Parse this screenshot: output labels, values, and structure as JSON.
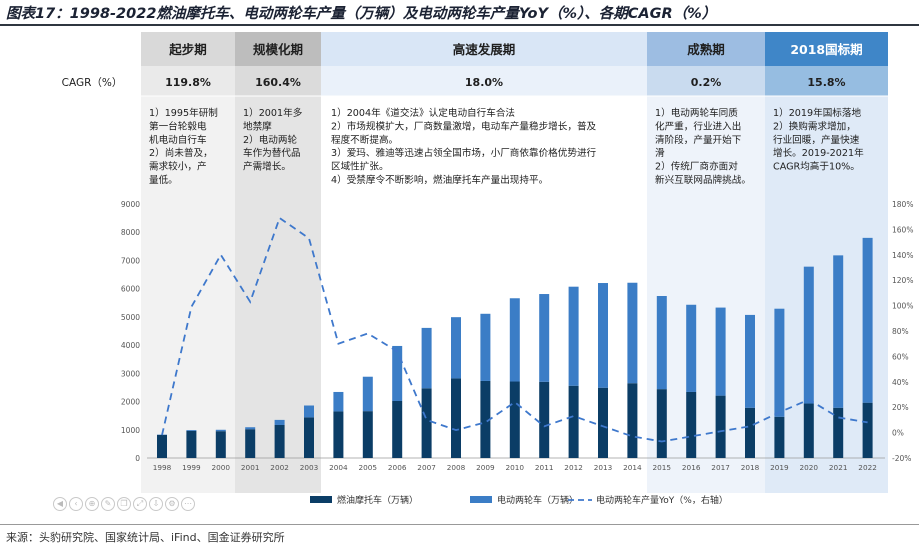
{
  "title": "图表17：1998-2022燃油摩托车、电动两轮车产量（万辆）及电动两轮车产量YoY（%）、各期CAGR（%）",
  "source": "来源：头豹研究院、国家统计局、iFind、国金证券研究所",
  "colors": {
    "fuel": "#0b3d66",
    "electric": "#3b7dc6",
    "yoy": "#3e78cc",
    "phase_header": [
      "#d9d9d9",
      "#bdbdbd",
      "#d9e6f6",
      "#9dbde2",
      "#3f86c8"
    ],
    "phase_body": [
      "#f2f2f2",
      "#e4e4e4",
      "#ffffff",
      "#eef3fa",
      "#dfeaf7"
    ]
  },
  "phases": [
    {
      "name": "起步期",
      "cagr": "119.8%",
      "notes": [
        "1）1995年研制",
        "第一台轮毂电",
        "机电动自行车",
        "2）尚未普及，",
        "需求较小，产",
        "量低。"
      ]
    },
    {
      "name": "规模化期",
      "cagr": "160.4%",
      "notes": [
        "1）2001年多",
        "地禁摩",
        "2）电动两轮",
        "车作为替代品",
        "产需增长。"
      ]
    },
    {
      "name": "高速发展期",
      "cagr": "18.0%",
      "notes": [
        "1）2004年《道交法》认定电动自行车合法",
        "2）市场规模扩大，厂商数量激增，电动车产量稳步增长，普及",
        "程度不断提高。",
        "3）爱玛、雅迪等迅速占领全国市场，小厂商依靠价格优势进行",
        "区域性扩张。",
        "4）受禁摩令不断影响，燃油摩托车产量出现持平。"
      ]
    },
    {
      "name": "成熟期",
      "cagr": "0.2%",
      "notes": [
        "1）电动两轮车同质",
        "化严重，行业进入出",
        "清阶段，产量开始下",
        "滑",
        "2）传统厂商亦面对",
        "新兴互联网品牌挑战。"
      ]
    },
    {
      "name": "2018国标期",
      "cagr": "15.8%",
      "notes": [
        "1）2019年国标落地",
        "2）换购需求增加，",
        "行业回暖，产量快速",
        "增长。2019-2021年",
        "CAGR均高于10%。"
      ]
    }
  ],
  "cagr_label": "CAGR（%）",
  "legend": {
    "fuel": "燃油摩托车（万辆）",
    "electric": "电动两轮车（万辆）",
    "yoy": "电动两轮车产量YoY（%，右轴）"
  },
  "chart_data": {
    "type": "bar",
    "stacked": true,
    "categories": [
      "1998",
      "1999",
      "2000",
      "2001",
      "2002",
      "2003",
      "2004",
      "2005",
      "2006",
      "2007",
      "2008",
      "2009",
      "2010",
      "2011",
      "2012",
      "2013",
      "2014",
      "2015",
      "2016",
      "2017",
      "2018",
      "2019",
      "2020",
      "2021",
      "2022"
    ],
    "series": [
      {
        "name": "燃油摩托车（万辆）",
        "axis": "left",
        "values": [
          820,
          960,
          950,
          1020,
          1170,
          1440,
          1650,
          1660,
          2020,
          2470,
          2820,
          2730,
          2710,
          2700,
          2560,
          2490,
          2650,
          2440,
          2340,
          2210,
          1780,
          1460,
          1930,
          1780,
          1960
        ]
      },
      {
        "name": "电动两轮车（万辆）",
        "axis": "left",
        "values": [
          10,
          30,
          50,
          70,
          180,
          420,
          690,
          1220,
          1950,
          2140,
          2170,
          2380,
          2950,
          3110,
          3510,
          3710,
          3560,
          3300,
          3090,
          3120,
          3290,
          3830,
          4850,
          5400,
          5840
        ]
      },
      {
        "name": "电动两轮车产量YoY（%，右轴）",
        "type": "line",
        "axis": "right",
        "values": [
          -2,
          99,
          140,
          103,
          169,
          153,
          70,
          78,
          64,
          10,
          2,
          8,
          24,
          5,
          13,
          5,
          -3,
          -7,
          -3,
          1,
          5,
          16,
          26,
          12,
          8
        ]
      }
    ],
    "yleft": {
      "min": 0,
      "max": 9000,
      "ticks": [
        "0",
        "1000",
        "2000",
        "3000",
        "4000",
        "5000",
        "6000",
        "7000",
        "8000",
        "9000"
      ]
    },
    "yright": {
      "min": -20,
      "max": 180,
      "ticks": [
        "-20%",
        "0%",
        "20%",
        "40%",
        "60%",
        "80%",
        "100%",
        "120%",
        "140%",
        "160%",
        "180%"
      ]
    }
  }
}
